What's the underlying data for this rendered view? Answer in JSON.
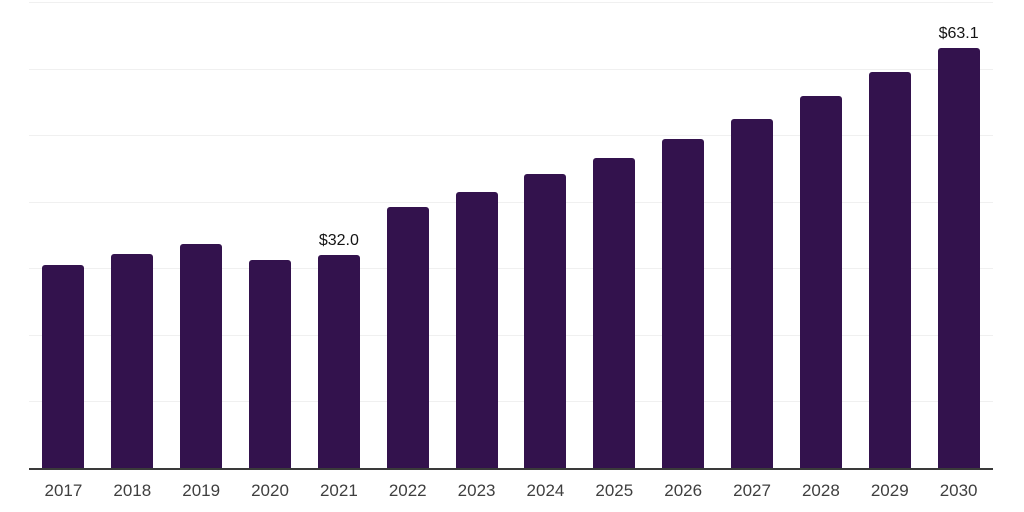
{
  "chart_data": {
    "type": "bar",
    "title": "",
    "xlabel": "",
    "ylabel": "",
    "categories": [
      "2017",
      "2018",
      "2019",
      "2020",
      "2021",
      "2022",
      "2023",
      "2024",
      "2025",
      "2026",
      "2027",
      "2028",
      "2029",
      "2030"
    ],
    "values": [
      30.5,
      32.1,
      33.7,
      31.2,
      32.0,
      39.2,
      41.5,
      44.1,
      46.6,
      49.4,
      52.5,
      55.9,
      59.5,
      63.1
    ],
    "data_labels": {
      "2021": "$32.0",
      "2030": "$63.1"
    },
    "ylim": [
      0,
      70
    ],
    "grid_step": 10,
    "grid": "horizontal-only",
    "y_axis_ticks_visible": false,
    "legend": "none",
    "colors": {
      "bar": "#33124d",
      "gridline": "#f0f0f0",
      "axis": "#3a3a3a",
      "tick_label": "#3f3f3f",
      "data_label": "#141414",
      "background": "#ffffff"
    }
  }
}
